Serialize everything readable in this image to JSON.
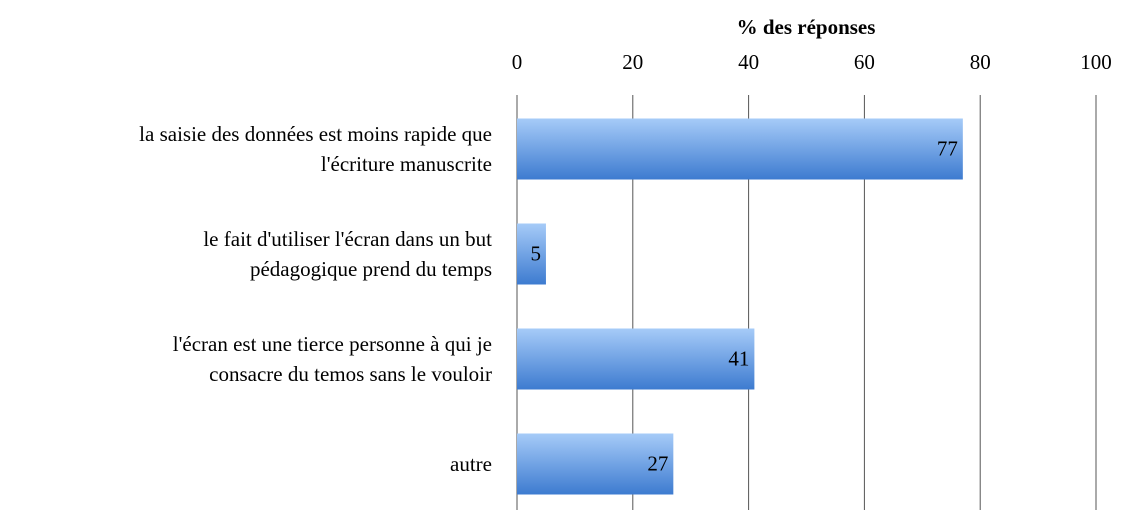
{
  "chart_data": {
    "type": "bar",
    "orientation": "horizontal",
    "x_label": "% des réponses",
    "categories": [
      "la saisie des données est moins rapide que\nl'écriture manuscrite",
      "le fait d'utiliser l'écran dans un but\npédagogique prend du temps",
      "l'écran est une tierce personne à qui je\nconsacre du temos sans le vouloir",
      "autre"
    ],
    "values": [
      77,
      5,
      41,
      27
    ],
    "color": "#3d7bd0",
    "xlim": [
      0,
      100
    ],
    "xticks": [
      0,
      20,
      40,
      60,
      80,
      100
    ],
    "grid": true
  }
}
